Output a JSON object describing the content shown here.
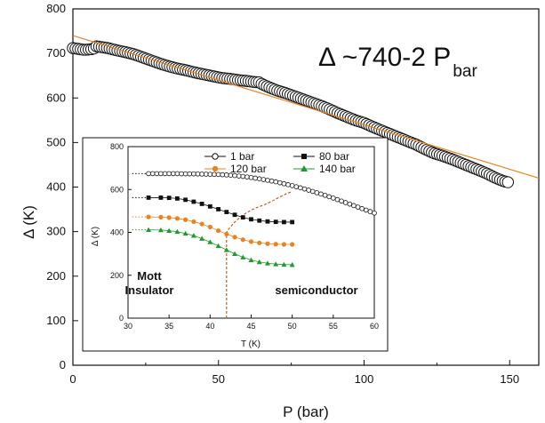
{
  "chart_data": [
    {
      "type": "scatter",
      "xlabel": "P (bar)",
      "ylabel": "Δ (K)",
      "xlim": [
        0,
        160
      ],
      "ylim": [
        0,
        800
      ],
      "xticks": [
        0,
        50,
        100,
        150
      ],
      "yticks": [
        0,
        100,
        200,
        300,
        400,
        500,
        600,
        700,
        800
      ],
      "annotation": {
        "main": "Δ ~740-2 P",
        "subscript": "bar"
      },
      "colors": {
        "fit": "#e8831e",
        "markers": "#111111"
      },
      "fit_line": {
        "intercept": 740,
        "slope": -2
      },
      "series": [
        {
          "x": [
            0,
            2,
            4,
            7,
            8,
            10,
            12,
            15,
            18,
            21,
            24,
            27,
            30,
            33,
            36,
            39,
            42,
            45,
            48,
            51,
            54,
            57,
            60,
            62,
            64,
            65,
            67,
            70,
            73,
            76,
            79,
            82,
            85,
            88,
            91,
            94,
            97,
            100,
            103,
            106,
            109,
            112,
            115,
            118,
            121,
            124,
            127,
            130,
            133,
            136,
            139,
            142,
            145,
            148,
            150
          ],
          "y": [
            712,
            710,
            708,
            710,
            716,
            714,
            712,
            707,
            703,
            698,
            691,
            684,
            677,
            671,
            666,
            662,
            657,
            653,
            649,
            645,
            643,
            640,
            638,
            636,
            635,
            631,
            625,
            617,
            611,
            604,
            597,
            590,
            583,
            575,
            566,
            558,
            550,
            544,
            535,
            527,
            519,
            511,
            503,
            495,
            485,
            476,
            470,
            463,
            455,
            447,
            439,
            431,
            421,
            413,
            410
          ]
        }
      ]
    },
    {
      "type": "line",
      "inset": true,
      "xlabel": "T (K)",
      "ylabel": "Δ (K)",
      "xlim": [
        30,
        60
      ],
      "ylim": [
        0,
        800
      ],
      "xticks": [
        30,
        35,
        40,
        45,
        50,
        55,
        60
      ],
      "yticks": [
        0,
        200,
        400,
        600,
        800
      ],
      "labels": {
        "left": [
          "Mott",
          "Insulator"
        ],
        "right": "semiconductor"
      },
      "boundary_color": "#c0501e",
      "series": [
        {
          "name": "1 bar",
          "marker": "open-circle",
          "color": "#111111",
          "x": [
            32.5,
            33,
            34,
            35,
            36,
            37,
            38,
            39,
            40,
            41,
            42,
            43,
            44,
            45,
            46,
            47,
            48,
            49,
            50,
            51,
            52,
            53,
            54,
            55,
            56,
            57,
            58,
            59,
            60
          ],
          "y": [
            674,
            674,
            674,
            674,
            674,
            673,
            673,
            672,
            671,
            670,
            668,
            665,
            661,
            656,
            650,
            643,
            636,
            627,
            618,
            608,
            597,
            585,
            573,
            560,
            546,
            532,
            518,
            504,
            490
          ],
          "dotted_from": 30.5,
          "dotted_value": 674
        },
        {
          "name": "80 bar",
          "marker": "filled-square",
          "color": "#111111",
          "x": [
            32.5,
            34,
            35,
            36,
            37,
            38,
            39,
            40,
            41,
            42,
            43,
            44,
            45,
            46,
            47,
            48,
            49,
            50
          ],
          "y": [
            562,
            562,
            561,
            558,
            552,
            543,
            533,
            521,
            508,
            495,
            482,
            470,
            461,
            455,
            451,
            449,
            448,
            448
          ],
          "dotted_from": 30.5,
          "dotted_value": 562
        },
        {
          "name": "120 bar",
          "marker": "filled-circle",
          "color": "#e8831e",
          "x": [
            32.5,
            34,
            35,
            36,
            37,
            38,
            39,
            40,
            41,
            42,
            43,
            44,
            45,
            46,
            47,
            48,
            49,
            50
          ],
          "y": [
            472,
            471,
            469,
            465,
            459,
            450,
            439,
            425,
            408,
            392,
            378,
            366,
            357,
            351,
            347,
            345,
            344,
            344
          ],
          "dotted_from": 30.5,
          "dotted_value": 472
        },
        {
          "name": "140 bar",
          "marker": "filled-triangle",
          "color": "#1f9a2e",
          "x": [
            32.5,
            34,
            35,
            36,
            37,
            38,
            39,
            40,
            41,
            42,
            43,
            44,
            45,
            46,
            47,
            48,
            49,
            50
          ],
          "y": [
            412,
            411,
            408,
            403,
            395,
            385,
            371,
            355,
            337,
            318,
            300,
            284,
            271,
            262,
            256,
            252,
            250,
            249
          ],
          "dotted_from": 30.5,
          "dotted_value": 412
        }
      ]
    }
  ]
}
